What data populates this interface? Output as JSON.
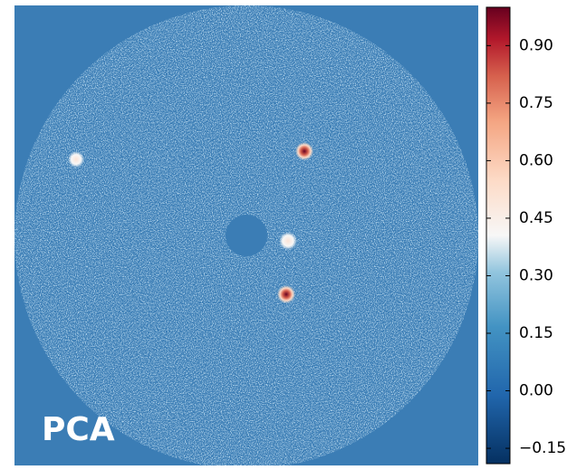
{
  "chart_data": {
    "type": "heatmap",
    "label": "PCA",
    "colorbar": {
      "clim": [
        -0.19,
        1.0
      ],
      "ticks": [
        {
          "value": -0.15,
          "label": "−0.15"
        },
        {
          "value": 0.0,
          "label": "0.00"
        },
        {
          "value": 0.15,
          "label": "0.15"
        },
        {
          "value": 0.3,
          "label": "0.30"
        },
        {
          "value": 0.45,
          "label": "0.45"
        },
        {
          "value": 0.6,
          "label": "0.60"
        },
        {
          "value": 0.75,
          "label": "0.75"
        },
        {
          "value": 0.9,
          "label": "0.90"
        }
      ]
    }
  }
}
